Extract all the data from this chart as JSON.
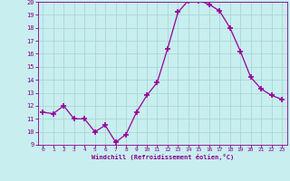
{
  "x": [
    0,
    1,
    2,
    3,
    4,
    5,
    6,
    7,
    8,
    9,
    10,
    11,
    12,
    13,
    14,
    15,
    16,
    17,
    18,
    19,
    20,
    21,
    22,
    23
  ],
  "y": [
    11.5,
    11.4,
    12.0,
    11.0,
    11.0,
    10.0,
    10.5,
    9.2,
    9.8,
    11.5,
    12.8,
    13.8,
    16.4,
    19.2,
    20.1,
    20.1,
    19.8,
    19.3,
    18.0,
    16.2,
    14.2,
    13.3,
    12.8,
    12.5
  ],
  "line_color": "#990099",
  "marker": "+",
  "marker_size": 4,
  "bg_color": "#c8eef0",
  "grid_color": "#a8d8d0",
  "xlabel": "Windchill (Refroidissement éolien,°C)",
  "xlabel_color": "#880088",
  "tick_color": "#880088",
  "ylim": [
    9,
    20
  ],
  "xlim": [
    -0.5,
    23.5
  ],
  "yticks": [
    9,
    10,
    11,
    12,
    13,
    14,
    15,
    16,
    17,
    18,
    19,
    20
  ],
  "xticks": [
    0,
    1,
    2,
    3,
    4,
    5,
    6,
    7,
    8,
    9,
    10,
    11,
    12,
    13,
    14,
    15,
    16,
    17,
    18,
    19,
    20,
    21,
    22,
    23
  ]
}
